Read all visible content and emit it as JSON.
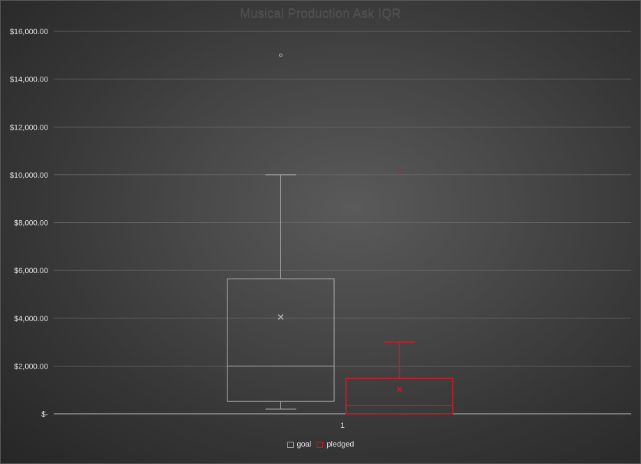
{
  "chart_data": {
    "type": "box",
    "title": "Musical Production Ask IQR",
    "xlabel": "",
    "ylabel": "",
    "categories": [
      "1"
    ],
    "ylim": [
      0,
      16000
    ],
    "y_ticks": [
      0,
      2000,
      4000,
      6000,
      8000,
      10000,
      12000,
      14000,
      16000
    ],
    "y_tick_labels": [
      "$-",
      "$2,000.00",
      "$4,000.00",
      "$6,000.00",
      "$8,000.00",
      "$10,000.00",
      "$12,000.00",
      "$14,000.00",
      "$16,000.00"
    ],
    "grid": true,
    "legend_position": "bottom",
    "series": [
      {
        "name": "goal",
        "color": "#b4b4b4",
        "min": 200,
        "q1": 520,
        "median": 2000,
        "q3": 5650,
        "max": 10000,
        "mean": 4050,
        "outliers": [
          15000
        ]
      },
      {
        "name": "pledged",
        "color": "#c0202a",
        "min": 0,
        "q1": 0,
        "median": 350,
        "q3": 1480,
        "max": 3000,
        "mean": 1030,
        "outliers": [
          10100
        ]
      }
    ]
  }
}
